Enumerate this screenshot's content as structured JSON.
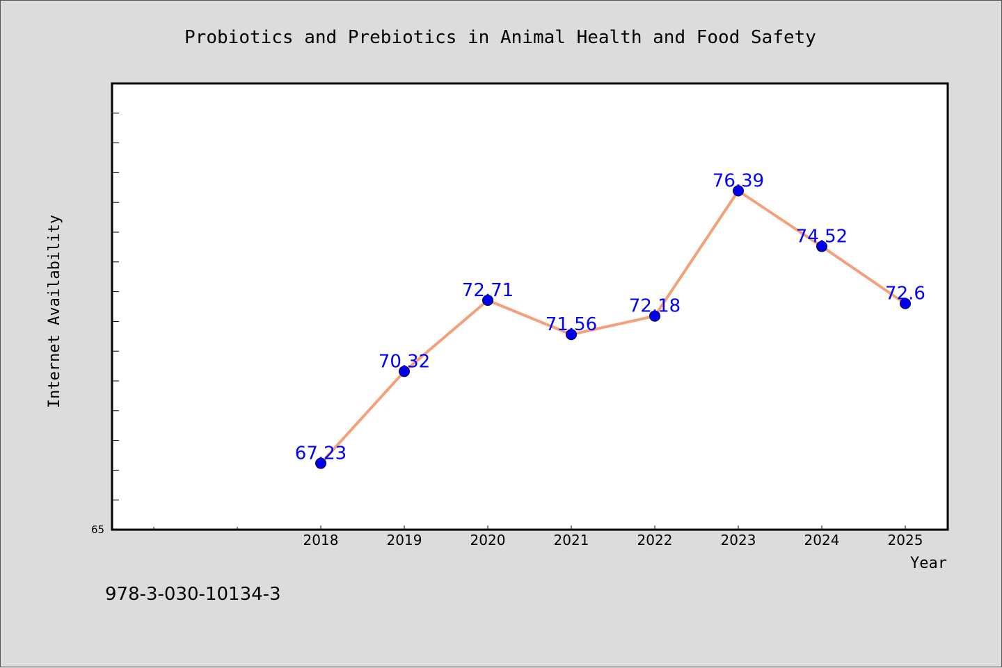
{
  "chart_data": {
    "type": "line",
    "title": "Probiotics and Prebiotics in Animal Health and Food Safety",
    "xlabel": "Year",
    "ylabel": "Internet Availability",
    "categories": [
      "2018",
      "2019",
      "2020",
      "2021",
      "2022",
      "2023",
      "2024",
      "2025"
    ],
    "values": [
      67.23,
      70.32,
      72.71,
      71.56,
      72.18,
      76.39,
      74.52,
      72.6
    ],
    "data_labels": [
      "67.23",
      "70.32",
      "72.71",
      "71.56",
      "72.18",
      "76.39",
      "74.52",
      "72.6"
    ],
    "y_tick_label": "65",
    "ylim": [
      65,
      80
    ],
    "grid": false,
    "colors": {
      "line": "#f4a07a",
      "marker": "#0000ee",
      "label": "#0000ff",
      "plot_bg": "#ffffff",
      "page_bg": "#dcdcdc"
    }
  },
  "footer": {
    "isbn": "978-3-030-10134-3"
  }
}
